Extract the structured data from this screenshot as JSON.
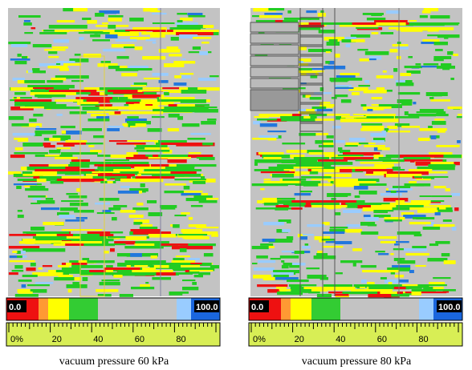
{
  "panels": [
    {
      "caption": "vacuum pressure 60 kPa",
      "scale": {
        "min_label": "0.0",
        "max_label": "100.0",
        "ticks": [
          "0%",
          "20",
          "40",
          "60",
          "80"
        ]
      }
    },
    {
      "caption": "vacuum pressure 80 kPa",
      "scale": {
        "min_label": "0.0",
        "max_label": "100.0",
        "ticks": [
          "0%",
          "20",
          "40",
          "60",
          "80"
        ]
      }
    }
  ]
}
